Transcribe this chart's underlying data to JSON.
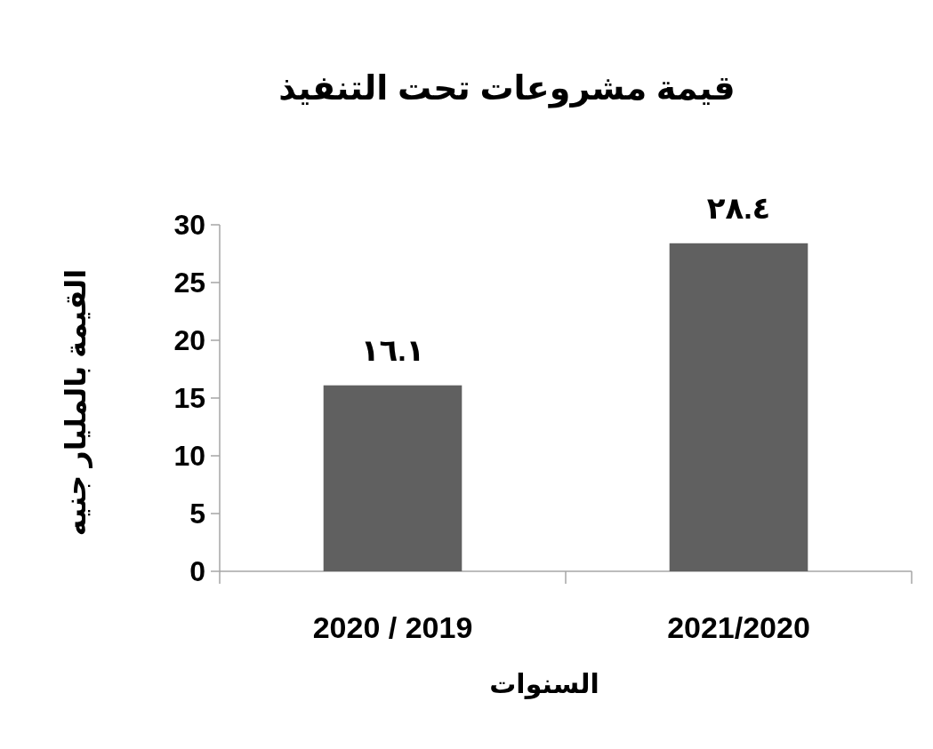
{
  "chart_data": {
    "type": "bar",
    "title": "قيمة مشروعات تحت التنفيذ",
    "xlabel": "السنوات",
    "ylabel": "القيمة بالمليار جنيه",
    "categories": [
      "2020 / 2019",
      "2021/2020"
    ],
    "values": [
      16.1,
      28.4
    ],
    "value_labels": [
      "١٦.١",
      "٢٨.٤"
    ],
    "color": "#606060",
    "ylim": [
      0,
      30
    ],
    "yticks": [
      0,
      5,
      10,
      15,
      20,
      25,
      30
    ],
    "grid": false
  }
}
